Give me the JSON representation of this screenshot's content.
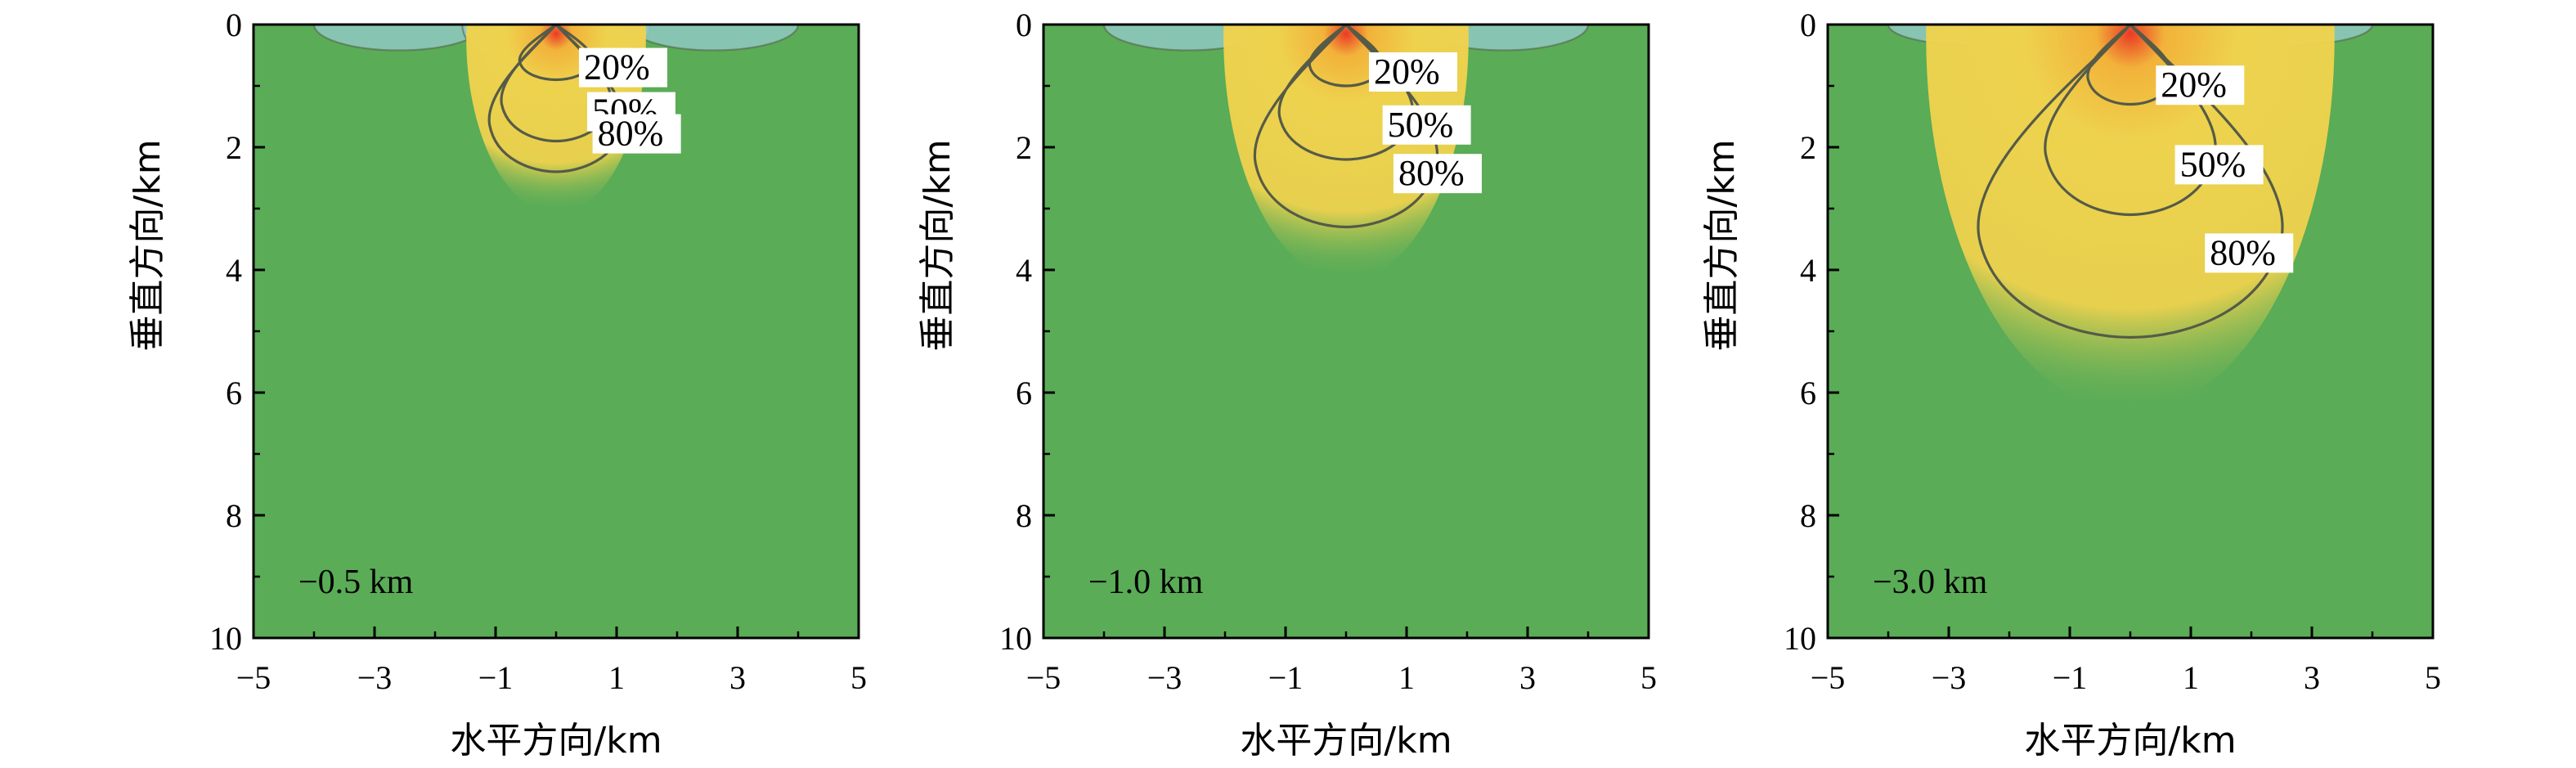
{
  "chart_data": [
    {
      "type": "heatmap",
      "panel_label": "−0.5 km",
      "xlabel": "水平方向/km",
      "ylabel": "垂直方向/km",
      "xlim": [
        -5,
        5
      ],
      "ylim": [
        10,
        0
      ],
      "x_ticks": [
        "−5",
        "−3",
        "−1",
        "1",
        "3",
        "5"
      ],
      "y_ticks": [
        "0",
        "2",
        "4",
        "6",
        "8",
        "10"
      ],
      "contours": [
        {
          "label": "20%",
          "depth": 0.9,
          "half_width": 0.6
        },
        {
          "label": "50%",
          "depth": 1.9,
          "half_width": 0.9
        },
        {
          "label": "80%",
          "depth": 2.4,
          "half_width": 1.1
        }
      ]
    },
    {
      "type": "heatmap",
      "panel_label": "−1.0 km",
      "xlabel": "水平方向/km",
      "ylabel": "垂直方向/km",
      "xlim": [
        -5,
        5
      ],
      "ylim": [
        10,
        0
      ],
      "x_ticks": [
        "−5",
        "−3",
        "−1",
        "1",
        "3",
        "5"
      ],
      "y_ticks": [
        "0",
        "2",
        "4",
        "6",
        "8",
        "10"
      ],
      "contours": [
        {
          "label": "20%",
          "depth": 1.0,
          "half_width": 0.6
        },
        {
          "label": "50%",
          "depth": 2.2,
          "half_width": 1.1
        },
        {
          "label": "80%",
          "depth": 3.3,
          "half_width": 1.5
        }
      ]
    },
    {
      "type": "heatmap",
      "panel_label": "−3.0 km",
      "xlabel": "水平方向/km",
      "ylabel": "垂直方向/km",
      "xlim": [
        -5,
        5
      ],
      "ylim": [
        10,
        0
      ],
      "x_ticks": [
        "−5",
        "−3",
        "−1",
        "1",
        "3",
        "5"
      ],
      "y_ticks": [
        "0",
        "2",
        "4",
        "6",
        "8",
        "10"
      ],
      "contours": [
        {
          "label": "20%",
          "depth": 1.3,
          "half_width": 0.7
        },
        {
          "label": "50%",
          "depth": 3.1,
          "half_width": 1.4
        },
        {
          "label": "80%",
          "depth": 5.1,
          "half_width": 2.5
        }
      ]
    }
  ],
  "colors": {
    "background_field": "#5aac57",
    "anomaly_center": "#ea3b25",
    "anomaly_high": "#f2b23a",
    "anomaly_mid": "#eed24e",
    "near_surface_low": "#8fc9c2",
    "contour_line": "#555b47"
  }
}
